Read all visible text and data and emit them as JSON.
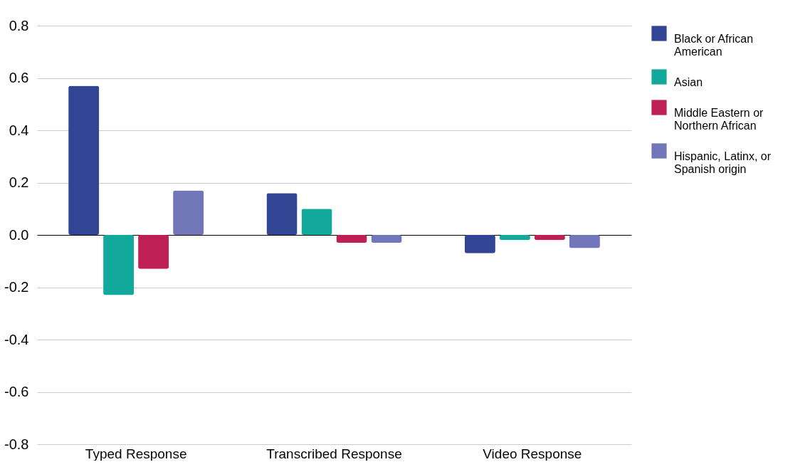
{
  "chart_data": {
    "type": "bar",
    "categories": [
      "Typed Response",
      "Transcribed Response",
      "Video Response"
    ],
    "series": [
      {
        "name": "Black or African American",
        "color": "#314594",
        "values": [
          0.57,
          0.16,
          -0.07
        ]
      },
      {
        "name": "Asian",
        "color": "#12a99c",
        "values": [
          -0.23,
          0.1,
          -0.02
        ]
      },
      {
        "name": "Middle Eastern or Northern African",
        "color": "#be1f55",
        "values": [
          -0.13,
          -0.03,
          -0.02
        ]
      },
      {
        "name": "Hispanic, Latinx, or Spanish origin",
        "color": "#7076b8",
        "values": [
          0.17,
          -0.03,
          -0.05
        ]
      }
    ],
    "ylim": [
      -0.8,
      0.8
    ],
    "yticks": [
      -0.8,
      -0.6,
      -0.4,
      -0.2,
      {
        "value": 0,
        "label": "0.0"
      },
      0.2,
      0.4,
      0.6,
      0.8
    ],
    "grid": "y",
    "legend": "top right"
  }
}
